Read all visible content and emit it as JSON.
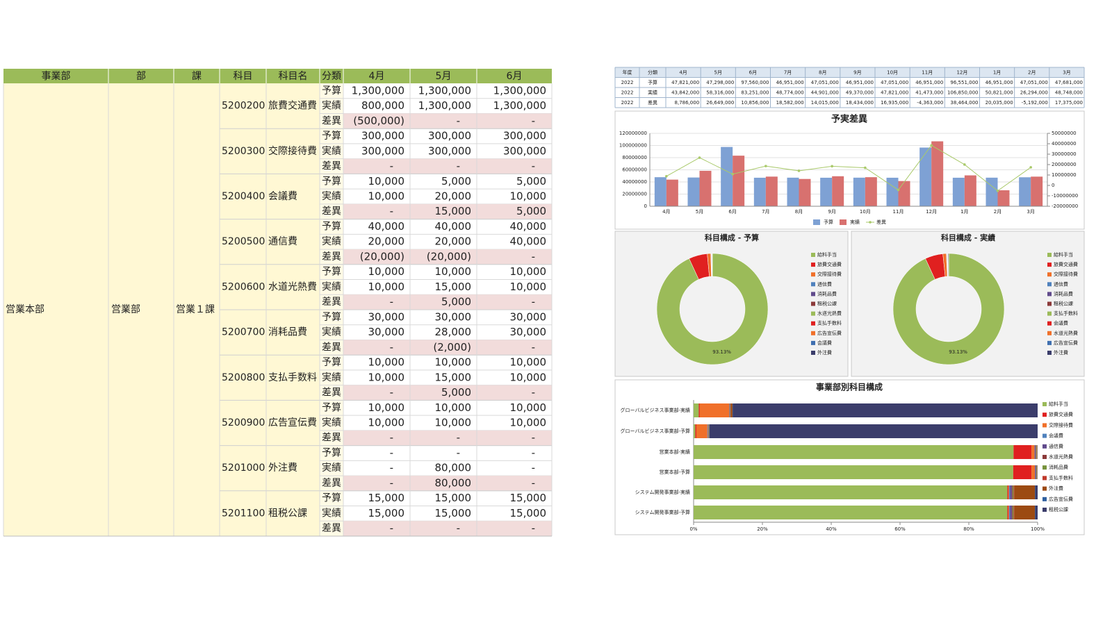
{
  "budget_table": {
    "headers": [
      "事業部",
      "部",
      "課",
      "科目",
      "科目名",
      "分類",
      "4月",
      "5月",
      "6月"
    ],
    "department": "営業本部",
    "division": "営業部",
    "section": "営業１課",
    "items": [
      {
        "code": "5200200",
        "name": "旅費交通費",
        "rows": [
          {
            "type": "予算",
            "values": [
              "1,300,000",
              "1,300,000",
              "1,300,000"
            ]
          },
          {
            "type": "実績",
            "values": [
              "800,000",
              "1,300,000",
              "1,300,000"
            ]
          },
          {
            "type": "差異",
            "values": [
              "(500,000)",
              "-",
              "-"
            ]
          }
        ]
      },
      {
        "code": "5200300",
        "name": "交際接待費",
        "rows": [
          {
            "type": "予算",
            "values": [
              "300,000",
              "300,000",
              "300,000"
            ]
          },
          {
            "type": "実績",
            "values": [
              "300,000",
              "300,000",
              "300,000"
            ]
          },
          {
            "type": "差異",
            "values": [
              "-",
              "-",
              "-"
            ]
          }
        ]
      },
      {
        "code": "5200400",
        "name": "会議費",
        "rows": [
          {
            "type": "予算",
            "values": [
              "10,000",
              "5,000",
              "5,000"
            ]
          },
          {
            "type": "実績",
            "values": [
              "10,000",
              "20,000",
              "10,000"
            ]
          },
          {
            "type": "差異",
            "values": [
              "-",
              "15,000",
              "5,000"
            ]
          }
        ]
      },
      {
        "code": "5200500",
        "name": "通信費",
        "rows": [
          {
            "type": "予算",
            "values": [
              "40,000",
              "40,000",
              "40,000"
            ]
          },
          {
            "type": "実績",
            "values": [
              "20,000",
              "20,000",
              "40,000"
            ]
          },
          {
            "type": "差異",
            "values": [
              "(20,000)",
              "(20,000)",
              "-"
            ]
          }
        ]
      },
      {
        "code": "5200600",
        "name": "水道光熱費",
        "rows": [
          {
            "type": "予算",
            "values": [
              "10,000",
              "10,000",
              "10,000"
            ]
          },
          {
            "type": "実績",
            "values": [
              "10,000",
              "15,000",
              "10,000"
            ]
          },
          {
            "type": "差異",
            "values": [
              "-",
              "5,000",
              "-"
            ]
          }
        ]
      },
      {
        "code": "5200700",
        "name": "消耗品費",
        "rows": [
          {
            "type": "予算",
            "values": [
              "30,000",
              "30,000",
              "30,000"
            ]
          },
          {
            "type": "実績",
            "values": [
              "30,000",
              "28,000",
              "30,000"
            ]
          },
          {
            "type": "差異",
            "values": [
              "-",
              "(2,000)",
              "-"
            ]
          }
        ]
      },
      {
        "code": "5200800",
        "name": "支払手数料",
        "rows": [
          {
            "type": "予算",
            "values": [
              "10,000",
              "10,000",
              "10,000"
            ]
          },
          {
            "type": "実績",
            "values": [
              "10,000",
              "15,000",
              "10,000"
            ]
          },
          {
            "type": "差異",
            "values": [
              "-",
              "5,000",
              "-"
            ]
          }
        ]
      },
      {
        "code": "5200900",
        "name": "広告宣伝費",
        "rows": [
          {
            "type": "予算",
            "values": [
              "10,000",
              "10,000",
              "10,000"
            ]
          },
          {
            "type": "実績",
            "values": [
              "10,000",
              "10,000",
              "10,000"
            ]
          },
          {
            "type": "差異",
            "values": [
              "-",
              "-",
              "-"
            ]
          }
        ]
      },
      {
        "code": "5201000",
        "name": "外注費",
        "rows": [
          {
            "type": "予算",
            "values": [
              "-",
              "-",
              "-"
            ]
          },
          {
            "type": "実績",
            "values": [
              "-",
              "80,000",
              "-"
            ]
          },
          {
            "type": "差異",
            "values": [
              "-",
              "80,000",
              "-"
            ]
          }
        ]
      },
      {
        "code": "5201100",
        "name": "租税公課",
        "rows": [
          {
            "type": "予算",
            "values": [
              "15,000",
              "15,000",
              "15,000"
            ]
          },
          {
            "type": "実績",
            "values": [
              "15,000",
              "15,000",
              "15,000"
            ]
          },
          {
            "type": "差異",
            "values": [
              "-",
              "-",
              "-"
            ]
          }
        ]
      }
    ]
  },
  "summary_table": {
    "headers": [
      "年度",
      "分類",
      "4月",
      "5月",
      "6月",
      "7月",
      "8月",
      "9月",
      "10月",
      "11月",
      "12月",
      "1月",
      "2月",
      "3月"
    ],
    "rows": [
      [
        "2022",
        "予算",
        "47,821,000",
        "47,298,000",
        "97,560,000",
        "46,951,000",
        "47,051,000",
        "46,951,000",
        "47,051,000",
        "46,951,000",
        "96,551,000",
        "46,951,000",
        "47,051,000",
        "47,681,000"
      ],
      [
        "2022",
        "実績",
        "43,842,000",
        "58,316,000",
        "83,251,000",
        "48,774,000",
        "44,901,000",
        "49,370,000",
        "47,821,000",
        "41,473,000",
        "106,850,000",
        "50,821,000",
        "26,294,000",
        "48,748,000"
      ],
      [
        "2022",
        "差異",
        "8,786,000",
        "26,649,000",
        "10,856,000",
        "18,582,000",
        "14,015,000",
        "18,434,000",
        "16,935,000",
        "-4,363,000",
        "38,464,000",
        "20,035,000",
        "-5,192,000",
        "17,375,000"
      ]
    ]
  },
  "variance_chart": {
    "type": "bar",
    "title": "予実差異",
    "categories": [
      "4月",
      "5月",
      "6月",
      "7月",
      "8月",
      "9月",
      "10月",
      "11月",
      "12月",
      "1月",
      "2月",
      "3月"
    ],
    "series": [
      {
        "name": "予算",
        "color": "#7ea1d4",
        "values": [
          47821000,
          47298000,
          97560000,
          46951000,
          47051000,
          46951000,
          47051000,
          46951000,
          96551000,
          46951000,
          47051000,
          47681000
        ]
      },
      {
        "name": "実績",
        "color": "#d8716f",
        "values": [
          43842000,
          58316000,
          83251000,
          48774000,
          44901000,
          49370000,
          47821000,
          41473000,
          106850000,
          50821000,
          26294000,
          48748000
        ]
      },
      {
        "name": "差異",
        "type": "line",
        "axis": "y2",
        "color": "#a9c96a",
        "values": [
          8786000,
          26649000,
          10856000,
          18582000,
          14015000,
          18434000,
          16935000,
          -4363000,
          38464000,
          20035000,
          -5192000,
          17375000
        ]
      }
    ],
    "ylim": [
      0,
      120000000
    ],
    "yticks": [
      0,
      20000000,
      40000000,
      60000000,
      80000000,
      100000000,
      120000000
    ],
    "y2lim": [
      -20000000,
      50000000
    ],
    "y2ticks": [
      -20000000,
      -10000000,
      0,
      10000000,
      20000000,
      30000000,
      40000000,
      50000000
    ],
    "grid": true
  },
  "budget_mix": {
    "type": "donut",
    "title": "科目構成 - 予算",
    "categories": [
      "給料手当",
      "旅費交通費",
      "交際接待費",
      "通信費",
      "消耗品費",
      "租税公課",
      "水道光熱費",
      "支払手数料",
      "広告宣伝費",
      "会議費",
      "外注費"
    ],
    "colors": [
      "#9bbb59",
      "#e02020",
      "#f0702a",
      "#4f81bd",
      "#604a8c",
      "#8b3a3a",
      "#9bbb59",
      "#e02020",
      "#f0702a",
      "#3f6fb0",
      "#3b3d6b"
    ],
    "values": [
      93.13,
      5.4,
      1.01,
      0.13,
      0.1,
      0.05,
      0.03,
      0.03,
      0.03,
      0.02,
      0.07
    ],
    "value_labels": [
      "93.13%",
      null,
      null,
      null,
      null,
      null,
      null,
      null,
      null,
      null,
      null
    ]
  },
  "actual_mix": {
    "type": "donut",
    "title": "科目構成 - 実績",
    "categories": [
      "給料手当",
      "旅費交通費",
      "交際接待費",
      "通信費",
      "消耗品費",
      "租税公課",
      "支払手数料",
      "会議費",
      "水道光熱費",
      "広告宣伝費",
      "外注費"
    ],
    "colors": [
      "#9bbb59",
      "#e02020",
      "#f0702a",
      "#4f81bd",
      "#604a8c",
      "#8b3a3a",
      "#9bbb59",
      "#e02020",
      "#f0702a",
      "#3f6fb0",
      "#3b3d6b"
    ],
    "values": [
      93.13,
      5.2,
      1.0,
      0.15,
      0.1,
      0.05,
      0.05,
      0.05,
      0.04,
      0.03,
      0.2
    ],
    "value_labels": [
      "93.13%",
      null,
      null,
      null,
      null,
      null,
      null,
      null,
      null,
      null,
      null
    ]
  },
  "division_mix": {
    "type": "stacked_bar",
    "orientation": "horizontal",
    "title": "事業部別科目構成",
    "categories": [
      "グローバルビジネス事業部-実績",
      "グローバルビジネス事業部-予算",
      "営業本部-実績",
      "営業本部-予算",
      "システム開発事業部-実績",
      "システム開発事業部-予算"
    ],
    "series": [
      {
        "name": "給料手当",
        "color": "#9bbb59",
        "values": [
          1.5,
          0.5,
          93,
          92.9,
          91.2,
          91.2
        ]
      },
      {
        "name": "旅費交通費",
        "color": "#e02020",
        "values": [
          0.3,
          0.3,
          5.2,
          5.3,
          0.3,
          0.3
        ]
      },
      {
        "name": "交際接待費",
        "color": "#f0702a",
        "values": [
          8.6,
          3.2,
          0.9,
          1.0,
          0.2,
          0.2
        ]
      },
      {
        "name": "会議費",
        "color": "#4f81bd",
        "values": [
          0.1,
          0.1,
          0.05,
          0.05,
          0.3,
          0.3
        ]
      },
      {
        "name": "通信費",
        "color": "#604a8c",
        "values": [
          0.1,
          0.1,
          0.3,
          0.3,
          0.5,
          0.5
        ]
      },
      {
        "name": "水道光熱費",
        "color": "#8b3a3a",
        "values": [
          0.05,
          0.05,
          0.1,
          0.1,
          0.2,
          0.2
        ]
      },
      {
        "name": "消耗品費",
        "color": "#76923c",
        "values": [
          0.1,
          0.1,
          0.2,
          0.2,
          0.3,
          0.3
        ]
      },
      {
        "name": "支払手数料",
        "color": "#c0392b",
        "values": [
          0.05,
          0.05,
          0.1,
          0.1,
          0.2,
          0.2
        ]
      },
      {
        "name": "外注費",
        "color": "#9c4a12",
        "values": [
          0.5,
          0.1,
          0.1,
          0,
          6,
          6
        ]
      },
      {
        "name": "広告宣伝費",
        "color": "#2e5f9e",
        "values": [
          0.1,
          0.1,
          0.05,
          0.05,
          0.1,
          0.1
        ]
      },
      {
        "name": "租税公課",
        "color": "#3b3d6b",
        "values": [
          88.6,
          95.4,
          0,
          0,
          0.7,
          0.7
        ]
      }
    ],
    "xlim": [
      0,
      100
    ],
    "xticks": [
      {
        "value": 0,
        "label": "0%"
      },
      {
        "value": 20,
        "label": "20%"
      },
      {
        "value": 40,
        "label": "40%"
      },
      {
        "value": 60,
        "label": "60%"
      },
      {
        "value": 80,
        "label": "80%"
      },
      {
        "value": 100,
        "label": "100%"
      }
    ]
  }
}
